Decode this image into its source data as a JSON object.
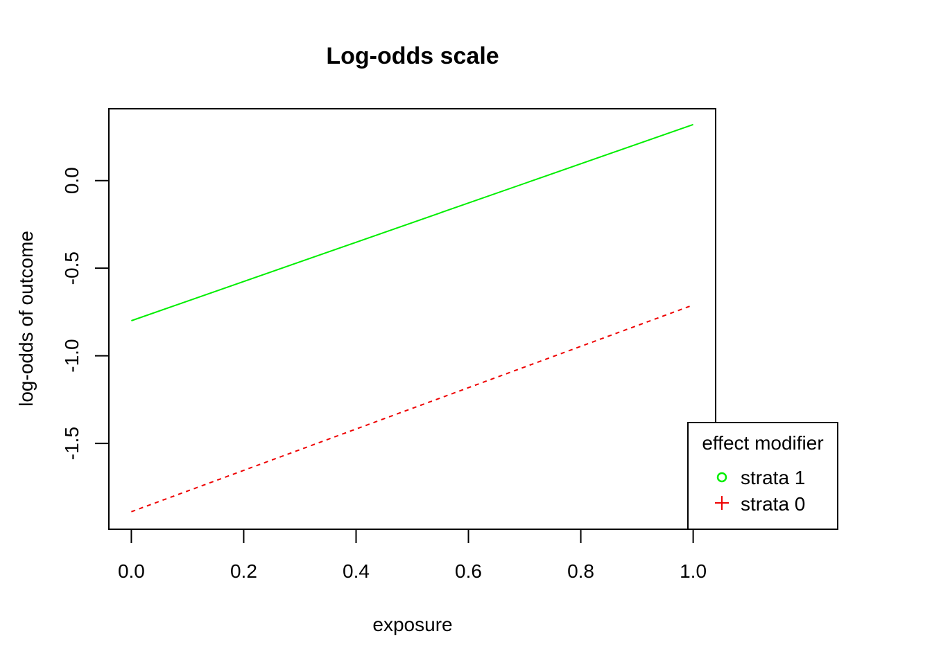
{
  "chart_data": {
    "type": "line",
    "title": "Log-odds scale",
    "xlabel": "exposure",
    "ylabel": "log-odds of outcome",
    "xlim": [
      -0.04,
      1.04
    ],
    "ylim": [
      -1.99,
      0.41
    ],
    "x_ticks": [
      0.0,
      0.2,
      0.4,
      0.6,
      0.8,
      1.0
    ],
    "x_tick_labels": [
      "0.0",
      "0.2",
      "0.4",
      "0.6",
      "0.8",
      "1.0"
    ],
    "y_ticks": [
      0.0,
      -0.5,
      -1.0,
      -1.5
    ],
    "y_tick_labels": [
      "0.0",
      "-0.5",
      "-1.0",
      "-1.5"
    ],
    "grid": false,
    "legend": {
      "title": "effect modifier",
      "placement": "bottom-right, outside plot area",
      "entries": [
        {
          "label": "strata 1",
          "symbol": "circle",
          "color": "#00ee00"
        },
        {
          "label": "strata 0",
          "symbol": "plus",
          "color": "#ee0000"
        }
      ]
    },
    "series": [
      {
        "label": "strata 1",
        "color": "#00ee00",
        "line_style": "solid",
        "x": [
          0.0,
          1.0
        ],
        "y": [
          -0.8,
          0.32
        ]
      },
      {
        "label": "strata 0",
        "color": "#ee0000",
        "line_style": "dashed",
        "x": [
          0.0,
          1.0
        ],
        "y": [
          -1.89,
          -0.71
        ]
      }
    ]
  }
}
